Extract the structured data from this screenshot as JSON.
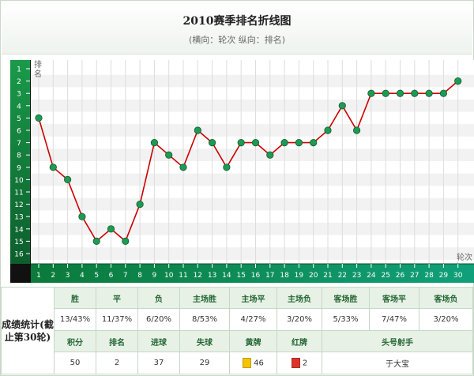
{
  "header": {
    "title": "2010赛季排名折线图",
    "subtitle": "(横向：轮次  纵向：排名)"
  },
  "chart_data": {
    "type": "line",
    "xlabel": "轮次",
    "ylabel": "排名",
    "x": [
      1,
      2,
      3,
      4,
      5,
      6,
      7,
      8,
      9,
      10,
      11,
      12,
      13,
      14,
      15,
      16,
      17,
      18,
      19,
      20,
      21,
      22,
      23,
      24,
      25,
      26,
      27,
      28,
      29,
      30
    ],
    "series": [
      {
        "values": [
          5,
          9,
          10,
          13,
          15,
          14,
          15,
          12,
          7,
          8,
          9,
          6,
          7,
          9,
          7,
          7,
          8,
          7,
          7,
          7,
          6,
          4,
          6,
          3,
          3,
          3,
          3,
          3,
          3,
          2
        ]
      }
    ],
    "xlim": [
      1,
      30
    ],
    "ylim": [
      1,
      16
    ],
    "y_reversed": true,
    "grid": true,
    "colors": {
      "line": "#cc0000",
      "marker": "#1f9a55",
      "axis": "#0b8f4a",
      "axis_dark": "#0a4d2a",
      "grid": "#dddddd"
    }
  },
  "stats": {
    "label": "成绩统计(截止第30轮)",
    "row1_headers": [
      "胜",
      "平",
      "负",
      "主场胜",
      "主场平",
      "主场负",
      "客场胜",
      "客场平",
      "客场负"
    ],
    "row1_values": [
      "13/43%",
      "11/37%",
      "6/20%",
      "8/53%",
      "4/27%",
      "3/20%",
      "5/33%",
      "7/47%",
      "3/20%"
    ],
    "row2_headers": [
      "积分",
      "排名",
      "进球",
      "失球",
      "黄牌",
      "红牌",
      "头号射手"
    ],
    "row2_values": [
      "50",
      "2",
      "37",
      "29",
      "46",
      "2",
      "于大宝"
    ],
    "yellow_card_color": "#f5c400",
    "red_card_color": "#d9342b"
  }
}
